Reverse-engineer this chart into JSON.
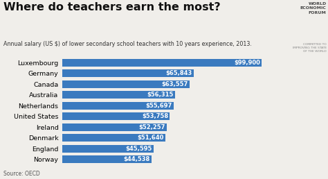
{
  "title": "Where do teachers earn the most?",
  "subtitle": "Annual salary (US $) of lower secondary school teachers with 10 years experience, 2013.",
  "source": "Source: OECD",
  "countries": [
    "Norway",
    "England",
    "Denmark",
    "Ireland",
    "United States",
    "Netherlands",
    "Australia",
    "Canada",
    "Germany",
    "Luxembourg"
  ],
  "values": [
    44538,
    45595,
    51640,
    52257,
    53758,
    55697,
    56315,
    63557,
    65843,
    99900
  ],
  "labels": [
    "$44,538",
    "$45,595",
    "$51,640",
    "$52,257",
    "$53,758",
    "$55,697",
    "$56,315",
    "$63,557",
    "$65,843",
    "$99,900"
  ],
  "bar_color": "#3a7abf",
  "label_color": "#ffffff",
  "title_color": "#111111",
  "subtitle_color": "#333333",
  "source_color": "#555555",
  "bg_color": "#f0eeea",
  "xlim": [
    0,
    110000
  ],
  "title_fontsize": 11.5,
  "subtitle_fontsize": 5.8,
  "label_fontsize": 6.0,
  "country_fontsize": 6.8,
  "source_fontsize": 5.5,
  "wef_fontsize": 4.5
}
